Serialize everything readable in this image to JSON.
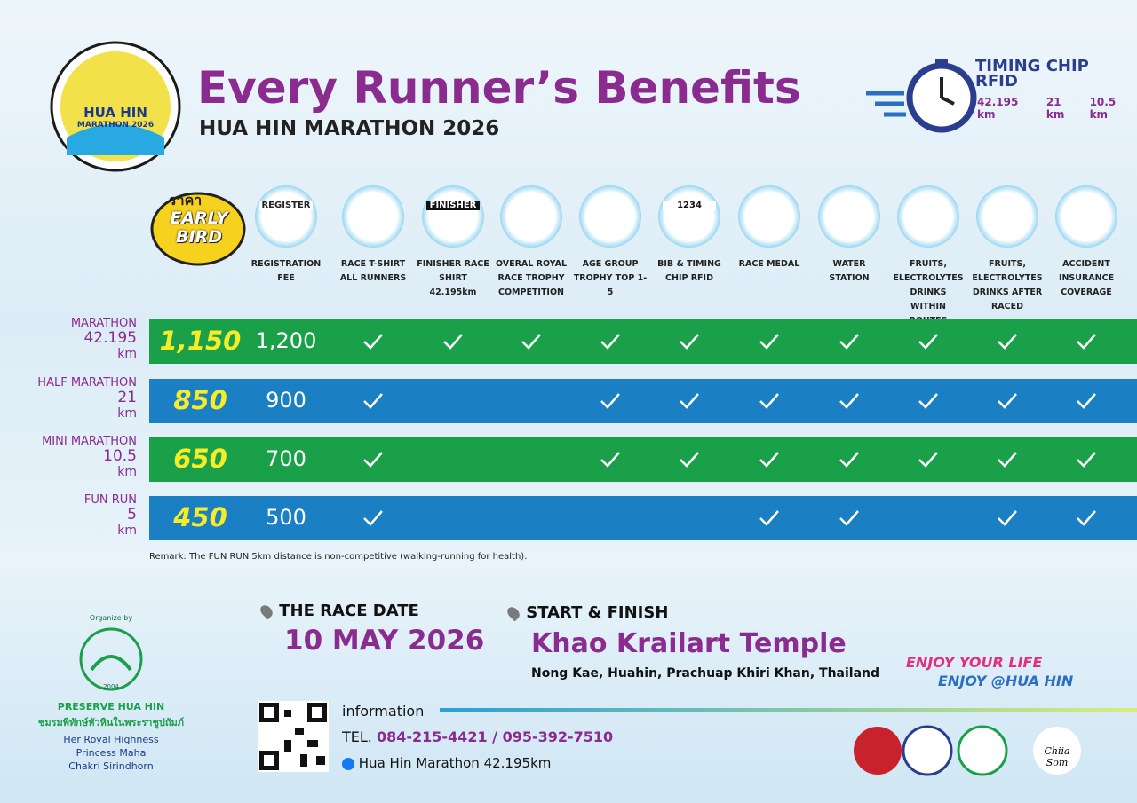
{
  "header": {
    "logo_title": "HUA HIN",
    "logo_subtitle": "MARATHON 2026",
    "title": "Every Runner’s Benefits",
    "subtitle": "HUA HIN MARATHON 2026",
    "timing": {
      "title": "TIMING CHIP RFID",
      "distances": [
        "42.195 km",
        "21 km",
        "10.5 km"
      ]
    }
  },
  "table": {
    "early_bird": {
      "top": "ราคา",
      "label": "EARLY BIRD"
    },
    "icon_texts": {
      "register": "REGISTER",
      "finisher": "FINISHER",
      "bib": "1234"
    },
    "columns": [
      "REGISTRATION FEE",
      "RACE T-SHIRT ALL RUNNERS",
      "FINISHER RACE SHIRT 42.195km",
      "OVERAL ROYAL RACE TROPHY COMPETITION",
      "AGE GROUP TROPHY TOP 1-5",
      "BIB & TIMING CHIP RFID",
      "RACE MEDAL",
      "WATER STATION",
      "FRUITS, ELECTROLYTES DRINKS WITHIN ROUTES",
      "FRUITS, ELECTROLYTES DRINKS AFTER RACED",
      "ACCIDENT INSURANCE COVERAGE"
    ],
    "rows": [
      {
        "name": "MARATHON",
        "distance": "42.195",
        "unit": "km",
        "early_price": "1,150",
        "price": "1,200",
        "color": "#1ba04a",
        "benefits": [
          true,
          true,
          true,
          true,
          true,
          true,
          true,
          true,
          true,
          true
        ]
      },
      {
        "name": "HALF MARATHON",
        "distance": "21",
        "unit": "km",
        "early_price": "850",
        "price": "900",
        "color": "#1b7fc3",
        "benefits": [
          true,
          false,
          false,
          true,
          true,
          true,
          true,
          true,
          true,
          true
        ]
      },
      {
        "name": "MINI MARATHON",
        "distance": "10.5",
        "unit": "km",
        "early_price": "650",
        "price": "700",
        "color": "#1ba04a",
        "benefits": [
          true,
          false,
          false,
          true,
          true,
          true,
          true,
          true,
          true,
          true
        ]
      },
      {
        "name": "FUN RUN",
        "distance": "5",
        "unit": "km",
        "early_price": "450",
        "price": "500",
        "color": "#1b7fc3",
        "benefits": [
          true,
          false,
          false,
          false,
          false,
          true,
          true,
          false,
          true,
          true
        ]
      }
    ],
    "remark": "Remark: The FUN RUN 5km distance is non-competitive (walking-running for health)."
  },
  "organizer": {
    "label": "Organize by",
    "year": "2004",
    "name": "PRESERVE HUA HIN",
    "thai_name": "ชมรมพิทักษ์หัวหินในพระราชูปถัมภ์",
    "patron": "Her Royal Highness Princess Maha Chakri Sirindhorn"
  },
  "race_date": {
    "label": "THE RACE DATE",
    "date": "10 MAY 2026"
  },
  "venue": {
    "label": "START & FINISH",
    "name": "Khao Krailart Temple",
    "address": "Nong Kae, Huahin, Prachuap Khiri Khan, Thailand"
  },
  "slogan": [
    "ENJOY YOUR LIFE",
    "ENJOY @HUA HIN"
  ],
  "info": {
    "label": "information",
    "tel_label": "TEL.",
    "tel": "084-215-4421 / 095-392-7510",
    "facebook": "Hua Hin Marathon 42.195km"
  },
  "sponsor": "Chiia Som"
}
